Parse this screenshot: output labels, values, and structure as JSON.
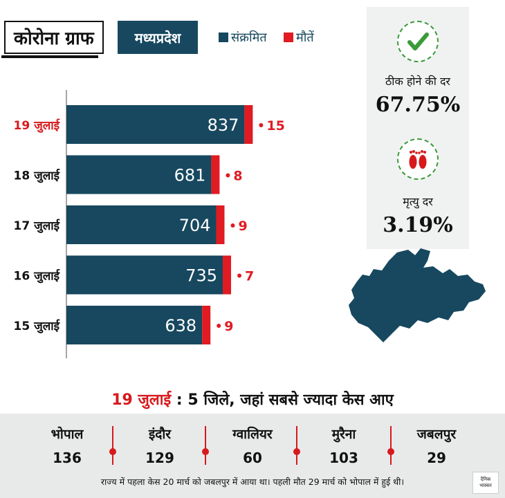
{
  "header": {
    "title": "कोरोना ग्राफ",
    "region": "मध्यप्रदेश",
    "legend_infected": "संक्रमित",
    "legend_deaths": "मौतें"
  },
  "colors": {
    "infected": "#17485f",
    "deaths": "#e01b22",
    "highlight_date": "#d7191c",
    "accent_green": "#3a9a3a"
  },
  "chart_data": {
    "type": "bar",
    "orientation": "horizontal",
    "stacked": true,
    "categories": [
      "19 जुलाई",
      "18 जुलाई",
      "17 जुलाई",
      "16 जुलाई",
      "15 जुलाई"
    ],
    "series": [
      {
        "name": "संक्रमित",
        "values": [
          837,
          681,
          704,
          735,
          638
        ]
      },
      {
        "name": "मौतें",
        "values": [
          15,
          8,
          9,
          7,
          9
        ]
      }
    ],
    "highlight_category": "19 जुलाई",
    "xlim": [
      0,
      852
    ],
    "grid": false,
    "legend": "top"
  },
  "stats": {
    "recovery_label": "ठीक होने की दर",
    "recovery_value": "67.75%",
    "death_label": "मृत्यु दर",
    "death_value": "3.19%",
    "recovery_icon": "check-icon",
    "death_icon": "footprints-icon"
  },
  "bottom": {
    "date": "19 जुलाई",
    "headline_rest": "5 जिले, जहां सबसे ज्यादा केस आए",
    "districts": [
      {
        "name": "भोपाल",
        "count": "136"
      },
      {
        "name": "इंदौर",
        "count": "129"
      },
      {
        "name": "ग्वालियर",
        "count": "60"
      },
      {
        "name": "मुरैना",
        "count": "103"
      },
      {
        "name": "जबलपुर",
        "count": "29"
      }
    ],
    "footnote": "राज्य में पहला केस 20 मार्च को जबलपुर में आया था। पहली मौत 29 मार्च को भोपाल में हुई थी।",
    "logo_line1": "दैनिक",
    "logo_line2": "भास्कर"
  }
}
